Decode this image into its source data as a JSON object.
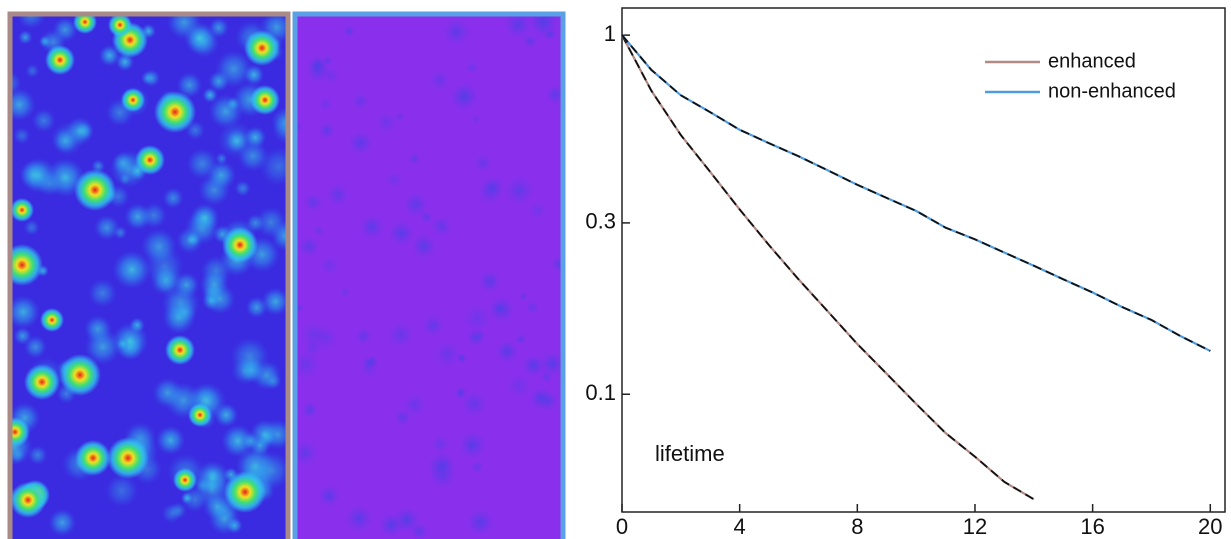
{
  "chart_data": {
    "type": "line",
    "annotation": "lifetime",
    "x": [
      0,
      1,
      2,
      3,
      4,
      5,
      6,
      7,
      8,
      9,
      10,
      11,
      12,
      13,
      14,
      15,
      16,
      17,
      18,
      19,
      20
    ],
    "series": [
      {
        "name": "enhanced",
        "color": "#b08a84",
        "values": [
          1,
          0.7,
          0.527,
          0.416,
          0.327,
          0.26,
          0.209,
          0.17,
          0.138,
          0.114,
          0.094,
          0.078,
          0.067,
          0.057,
          0.051,
          null,
          null,
          null,
          null,
          null,
          null
        ]
      },
      {
        "name": "non-enhanced",
        "color": "#4f9be0",
        "values": [
          1,
          0.8,
          0.68,
          0.61,
          0.545,
          0.5,
          0.46,
          0.42,
          0.383,
          0.352,
          0.324,
          0.291,
          0.27,
          0.248,
          0.228,
          0.209,
          0.192,
          0.175,
          0.161,
          0.145,
          0.132
        ]
      }
    ],
    "fit_color": "#111111",
    "xlim": [
      0,
      20.5
    ],
    "xticks": [
      0,
      4,
      8,
      12,
      16,
      20
    ],
    "ylim": [
      0.047,
      1.19
    ],
    "yticks": [
      0.1,
      0.3,
      1
    ],
    "yscale": "log",
    "legend": "upper right"
  }
}
